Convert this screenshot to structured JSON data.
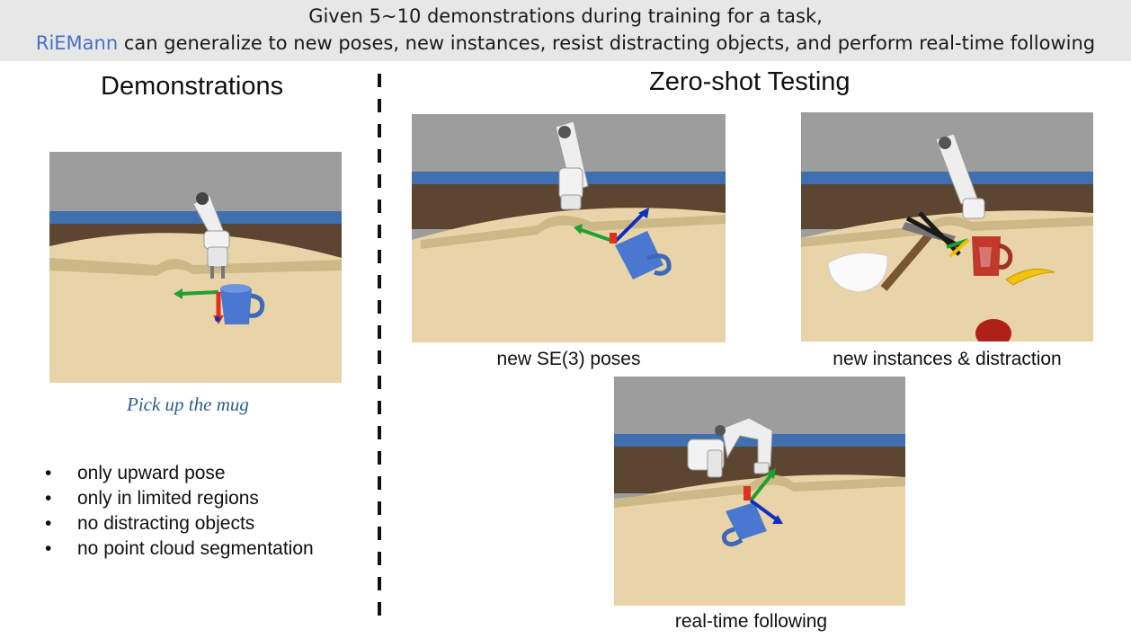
{
  "header": {
    "line1": "Given 5~10 demonstrations during training for a task,",
    "brand": "RiEMann",
    "line2_rest": " can generalize to new poses, new instances, resist distracting objects, and perform real-time following"
  },
  "left": {
    "title": "Demonstrations",
    "task": "Pick up the mug",
    "bullet_glyph": "•",
    "limitations": [
      "only upward pose",
      "only in limited regions",
      "no distracting objects",
      "no point cloud segmentation"
    ]
  },
  "right": {
    "title": "Zero-shot Testing",
    "captions": {
      "poses": "new SE(3) poses",
      "instances": "new instances & distraction",
      "following": "real-time following"
    }
  },
  "colors": {
    "header_bg": "#e7e7e7",
    "brand": "#4472c4",
    "task_text": "#2e5f8a",
    "axis_x": "#e03020",
    "axis_y": "#20a030",
    "axis_z": "#1030c0",
    "mug_blue": "#4a78d0",
    "table": "#e8d4a8"
  }
}
